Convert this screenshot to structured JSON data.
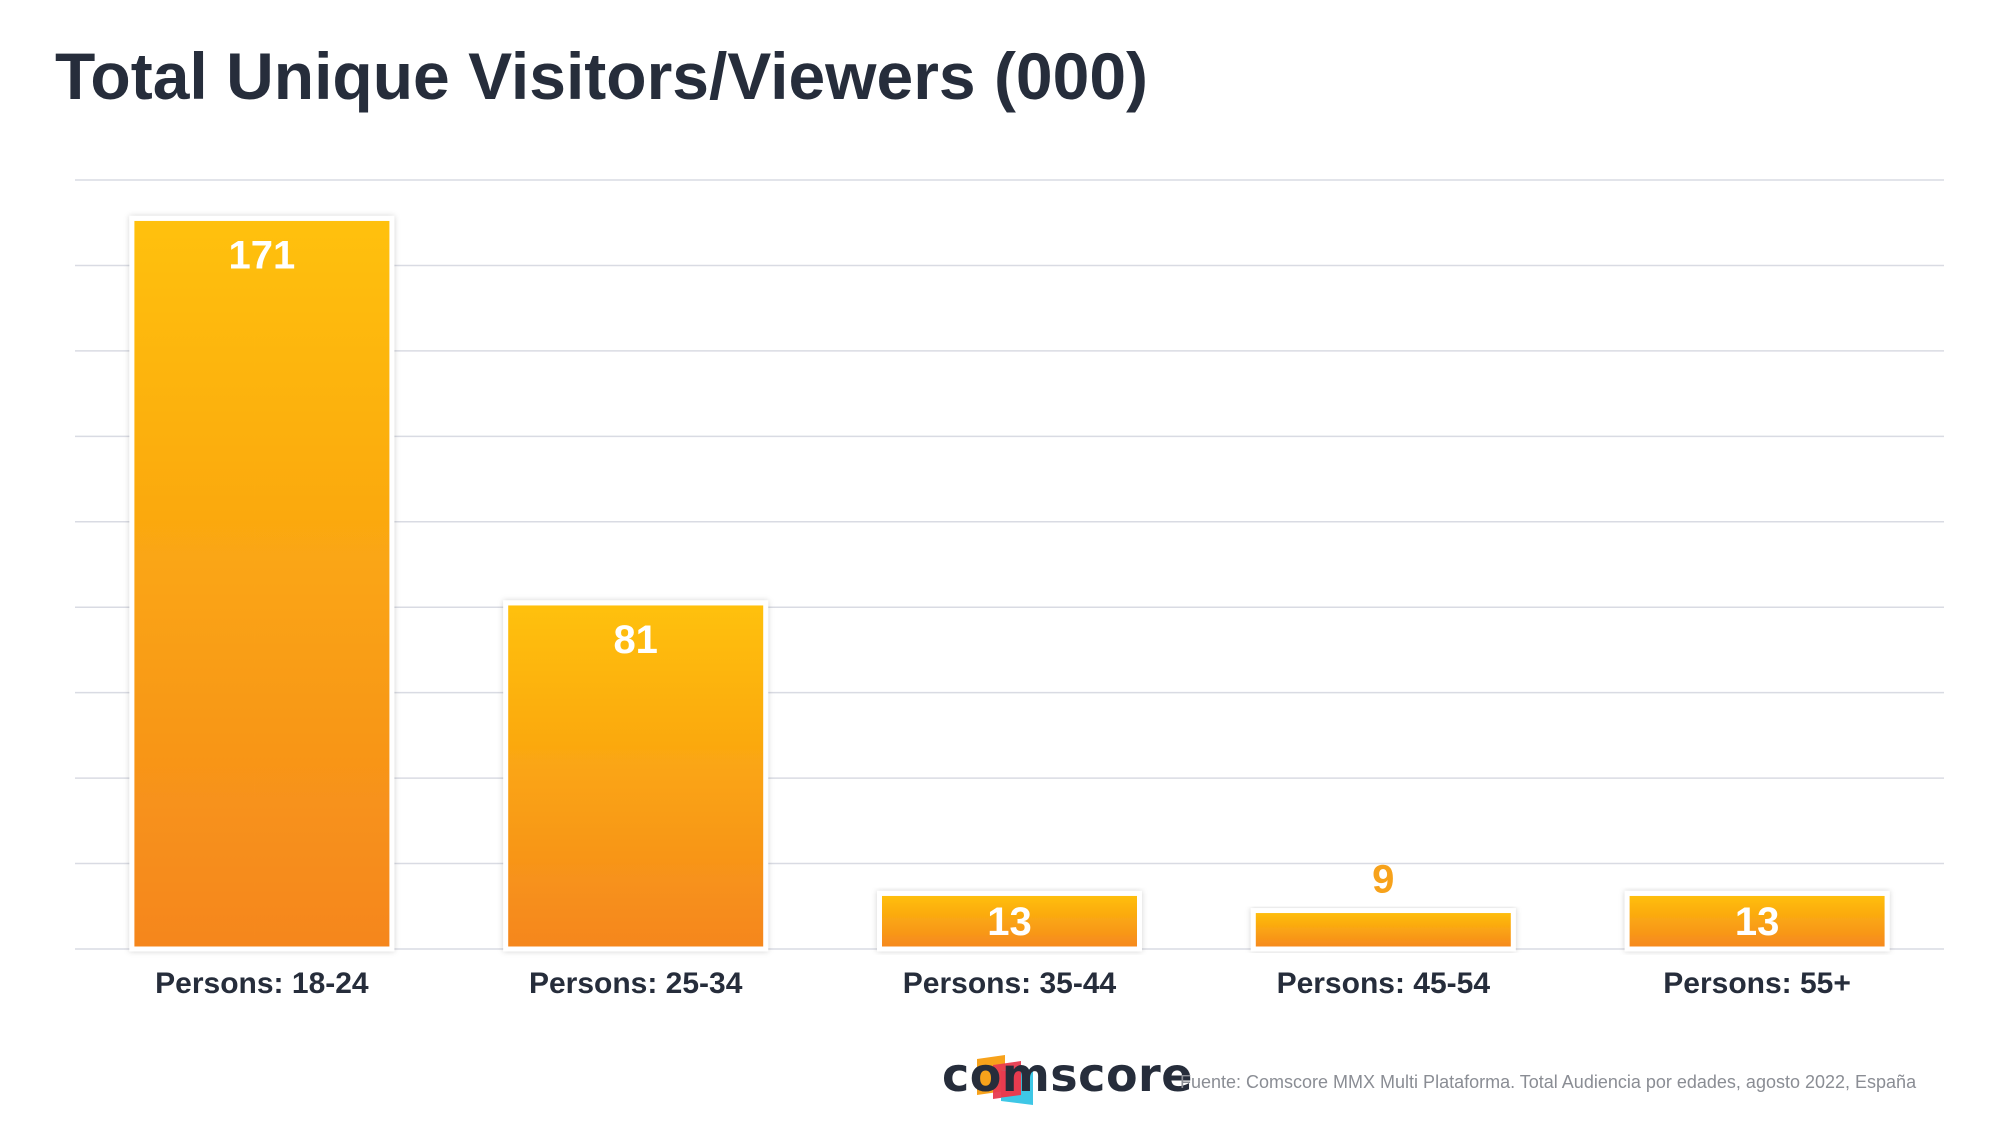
{
  "chart_data": {
    "type": "bar",
    "title": "Total Unique Visitors/Viewers (000)",
    "categories": [
      "Persons: 18-24",
      "Persons: 25-34",
      "Persons: 35-44",
      "Persons: 45-54",
      "Persons: 55+"
    ],
    "values": [
      171,
      81,
      13,
      9,
      13
    ],
    "ylim": [
      0,
      180
    ],
    "grid": true,
    "xlabel": "",
    "ylabel": ""
  },
  "brand": {
    "name": "comscore",
    "logo_icon": "comscore-logo-icon"
  },
  "footer": {
    "source": "Fuente: Comscore MMX Multi Plataforma. Total Audiencia por edades, agosto 2022, España"
  },
  "colors": {
    "bar_top": "#ffc107",
    "bar_bottom": "#f5861f",
    "label_inside": "#ffffff",
    "label_outside": "#f7a21b",
    "grid": "#d9dbe3",
    "title": "#262d3b"
  }
}
